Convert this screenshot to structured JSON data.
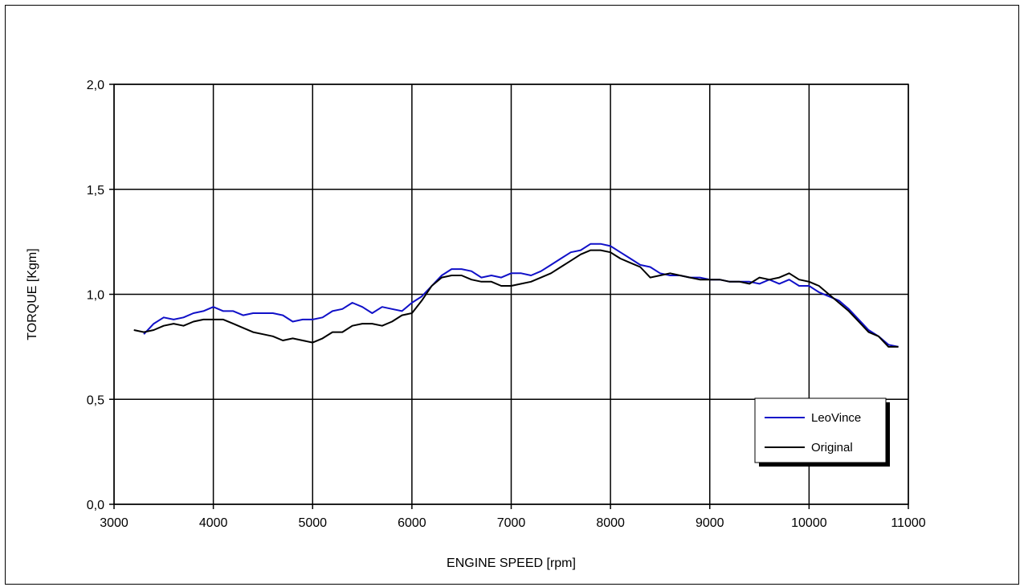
{
  "chart_data": {
    "type": "line",
    "title": "",
    "xlabel": "ENGINE SPEED [rpm]",
    "ylabel": "TORQUE [Kgm]",
    "xlim": [
      3000,
      11000
    ],
    "ylim": [
      0,
      2
    ],
    "x_ticks": [
      "3000",
      "4000",
      "5000",
      "6000",
      "7000",
      "8000",
      "9000",
      "10000",
      "11000"
    ],
    "y_ticks": [
      "0,0",
      "0,5",
      "1,0",
      "1,5",
      "2,0"
    ],
    "x_tick_values": [
      3000,
      4000,
      5000,
      6000,
      7000,
      8000,
      9000,
      10000,
      11000
    ],
    "y_tick_values": [
      0,
      0.5,
      1.0,
      1.5,
      2.0
    ],
    "grid": true,
    "legend_position": "bottom-right",
    "series": [
      {
        "name": "LeoVince",
        "color": "#1010c8",
        "x": [
          3300,
          3400,
          3500,
          3600,
          3700,
          3800,
          3900,
          4000,
          4100,
          4200,
          4300,
          4400,
          4500,
          4600,
          4700,
          4800,
          4900,
          5000,
          5100,
          5200,
          5300,
          5400,
          5500,
          5600,
          5700,
          5800,
          5900,
          6000,
          6100,
          6200,
          6300,
          6400,
          6500,
          6600,
          6700,
          6800,
          6900,
          7000,
          7100,
          7200,
          7300,
          7400,
          7500,
          7600,
          7700,
          7800,
          7900,
          8000,
          8100,
          8200,
          8300,
          8400,
          8500,
          8600,
          8700,
          8800,
          8900,
          9000,
          9100,
          9200,
          9300,
          9400,
          9500,
          9600,
          9700,
          9800,
          9900,
          10000,
          10100,
          10200,
          10300,
          10400,
          10500,
          10600,
          10700,
          10800,
          10900
        ],
        "values": [
          0.81,
          0.86,
          0.89,
          0.88,
          0.89,
          0.91,
          0.92,
          0.94,
          0.92,
          0.92,
          0.9,
          0.91,
          0.91,
          0.91,
          0.9,
          0.87,
          0.88,
          0.88,
          0.89,
          0.92,
          0.93,
          0.96,
          0.94,
          0.91,
          0.94,
          0.93,
          0.92,
          0.96,
          0.99,
          1.04,
          1.09,
          1.12,
          1.12,
          1.11,
          1.08,
          1.09,
          1.08,
          1.1,
          1.1,
          1.09,
          1.11,
          1.14,
          1.17,
          1.2,
          1.21,
          1.24,
          1.24,
          1.23,
          1.2,
          1.17,
          1.14,
          1.13,
          1.1,
          1.09,
          1.09,
          1.08,
          1.08,
          1.07,
          1.07,
          1.06,
          1.06,
          1.06,
          1.05,
          1.07,
          1.05,
          1.07,
          1.04,
          1.04,
          1.01,
          0.99,
          0.97,
          0.93,
          0.88,
          0.83,
          0.8,
          0.76,
          0.75
        ]
      },
      {
        "name": "Original",
        "color": "#000000",
        "x": [
          3200,
          3300,
          3400,
          3500,
          3600,
          3700,
          3800,
          3900,
          4000,
          4100,
          4200,
          4300,
          4400,
          4500,
          4600,
          4700,
          4800,
          4900,
          5000,
          5100,
          5200,
          5300,
          5400,
          5500,
          5600,
          5700,
          5800,
          5900,
          6000,
          6100,
          6200,
          6300,
          6400,
          6500,
          6600,
          6700,
          6800,
          6900,
          7000,
          7100,
          7200,
          7300,
          7400,
          7500,
          7600,
          7700,
          7800,
          7900,
          8000,
          8100,
          8200,
          8300,
          8400,
          8500,
          8600,
          8700,
          8800,
          8900,
          9000,
          9100,
          9200,
          9300,
          9400,
          9500,
          9600,
          9700,
          9800,
          9900,
          10000,
          10100,
          10200,
          10300,
          10400,
          10500,
          10600,
          10700,
          10800,
          10900
        ],
        "values": [
          0.83,
          0.82,
          0.83,
          0.85,
          0.86,
          0.85,
          0.87,
          0.88,
          0.88,
          0.88,
          0.86,
          0.84,
          0.82,
          0.81,
          0.8,
          0.78,
          0.79,
          0.78,
          0.77,
          0.79,
          0.82,
          0.82,
          0.85,
          0.86,
          0.86,
          0.85,
          0.87,
          0.9,
          0.91,
          0.97,
          1.04,
          1.08,
          1.09,
          1.09,
          1.07,
          1.06,
          1.06,
          1.04,
          1.04,
          1.05,
          1.06,
          1.08,
          1.1,
          1.13,
          1.16,
          1.19,
          1.21,
          1.21,
          1.2,
          1.17,
          1.15,
          1.13,
          1.08,
          1.09,
          1.1,
          1.09,
          1.08,
          1.07,
          1.07,
          1.07,
          1.06,
          1.06,
          1.05,
          1.08,
          1.07,
          1.08,
          1.1,
          1.07,
          1.06,
          1.04,
          1.0,
          0.96,
          0.92,
          0.87,
          0.82,
          0.8,
          0.75,
          0.75
        ]
      }
    ]
  }
}
